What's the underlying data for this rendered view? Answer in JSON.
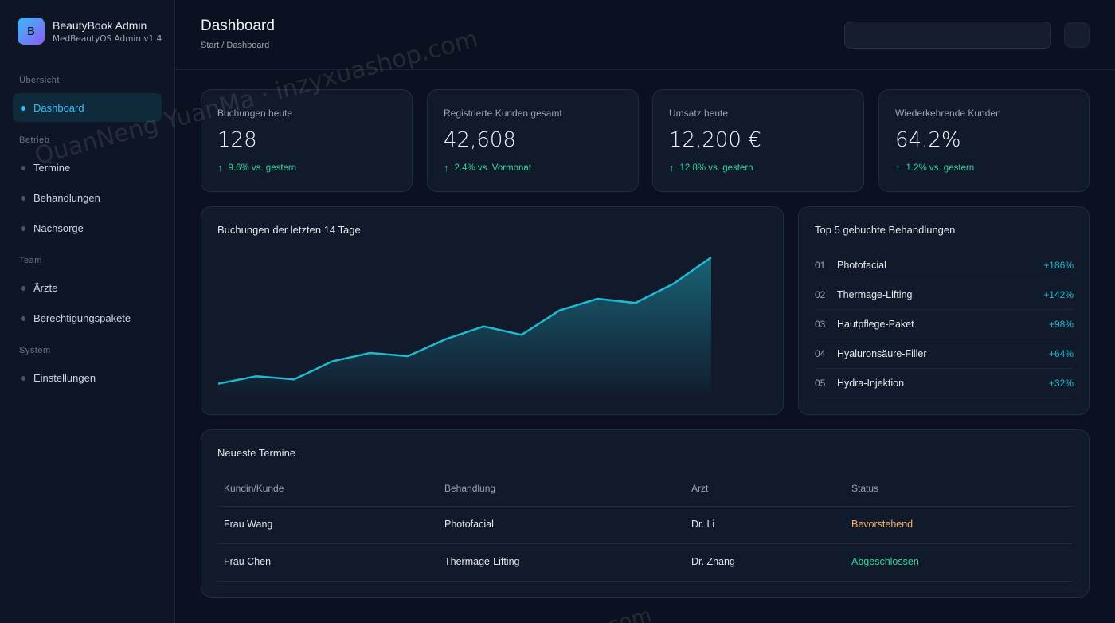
{
  "brand": {
    "logo_letter": "B",
    "title": "BeautyBook Admin",
    "subtitle": "MedBeautyOS Admin v1.4"
  },
  "sidebar": {
    "sections": [
      "Übersicht",
      "Betrieb",
      "Team",
      "System"
    ],
    "items": [
      {
        "label": "Dashboard",
        "active": true
      },
      {
        "label": "Termine"
      },
      {
        "label": "Behandlungen"
      },
      {
        "label": "Nachsorge"
      },
      {
        "label": "Ärzte"
      },
      {
        "label": "Berechtigungspakete"
      },
      {
        "label": "Einstellungen"
      }
    ]
  },
  "header": {
    "title": "Dashboard",
    "breadcrumb": "Start / Dashboard",
    "search_value": ""
  },
  "kpis": [
    {
      "label": "Buchungen heute",
      "value": "128",
      "delta": "9.6% vs. gestern"
    },
    {
      "label": "Registrierte Kunden gesamt",
      "value": "42,608",
      "delta": "2.4% vs. Vormonat"
    },
    {
      "label": "Umsatz heute",
      "value": "12,200 €",
      "delta": "12.8% vs. gestern"
    },
    {
      "label": "Wiederkehrende Kunden",
      "value": "64.2%",
      "delta": "1.2% vs. gestern"
    }
  ],
  "chart": {
    "title": "Buchungen der letzten 14 Tage"
  },
  "chart_data": {
    "type": "area",
    "title": "Buchungen der letzten 14 Tage",
    "x": [
      1,
      2,
      3,
      4,
      5,
      6,
      7,
      8,
      9,
      10,
      11,
      12,
      13,
      14
    ],
    "values": [
      10,
      17,
      14,
      31,
      39,
      36,
      52,
      64,
      56,
      79,
      90,
      86,
      104,
      129
    ],
    "ylim": [
      0,
      135
    ],
    "grid": false,
    "color": "#22b8cf"
  },
  "top5": {
    "title": "Top 5 gebuchte Behandlungen",
    "items": [
      {
        "rank": "01",
        "name": "Photofacial",
        "change": "+186%"
      },
      {
        "rank": "02",
        "name": "Thermage-Lifting",
        "change": "+142%"
      },
      {
        "rank": "03",
        "name": "Hautpflege-Paket",
        "change": "+98%"
      },
      {
        "rank": "04",
        "name": "Hyaluronsäure-Filler",
        "change": "+64%"
      },
      {
        "rank": "05",
        "name": "Hydra-Injektion",
        "change": "+32%"
      }
    ]
  },
  "appointments": {
    "title": "Neueste Termine",
    "columns": [
      "Kundin/Kunde",
      "Behandlung",
      "Arzt",
      "Status"
    ],
    "rows": [
      {
        "client": "Frau Wang",
        "treatment": "Photofacial",
        "doctor": "Dr. Li",
        "status": "Bevorstehend"
      },
      {
        "client": "Frau Chen",
        "treatment": "Thermage-Lifting",
        "doctor": "Dr. Zhang",
        "status": "Abgeschlossen"
      }
    ]
  },
  "watermark": {
    "text": "QuanNeng YuanMa · inzyxuashop.com",
    "text2": "com"
  },
  "colors": {
    "accent": "#38bdf8",
    "positive": "#34d399",
    "upcoming": "#f6b26b",
    "background": "#0b1120"
  }
}
